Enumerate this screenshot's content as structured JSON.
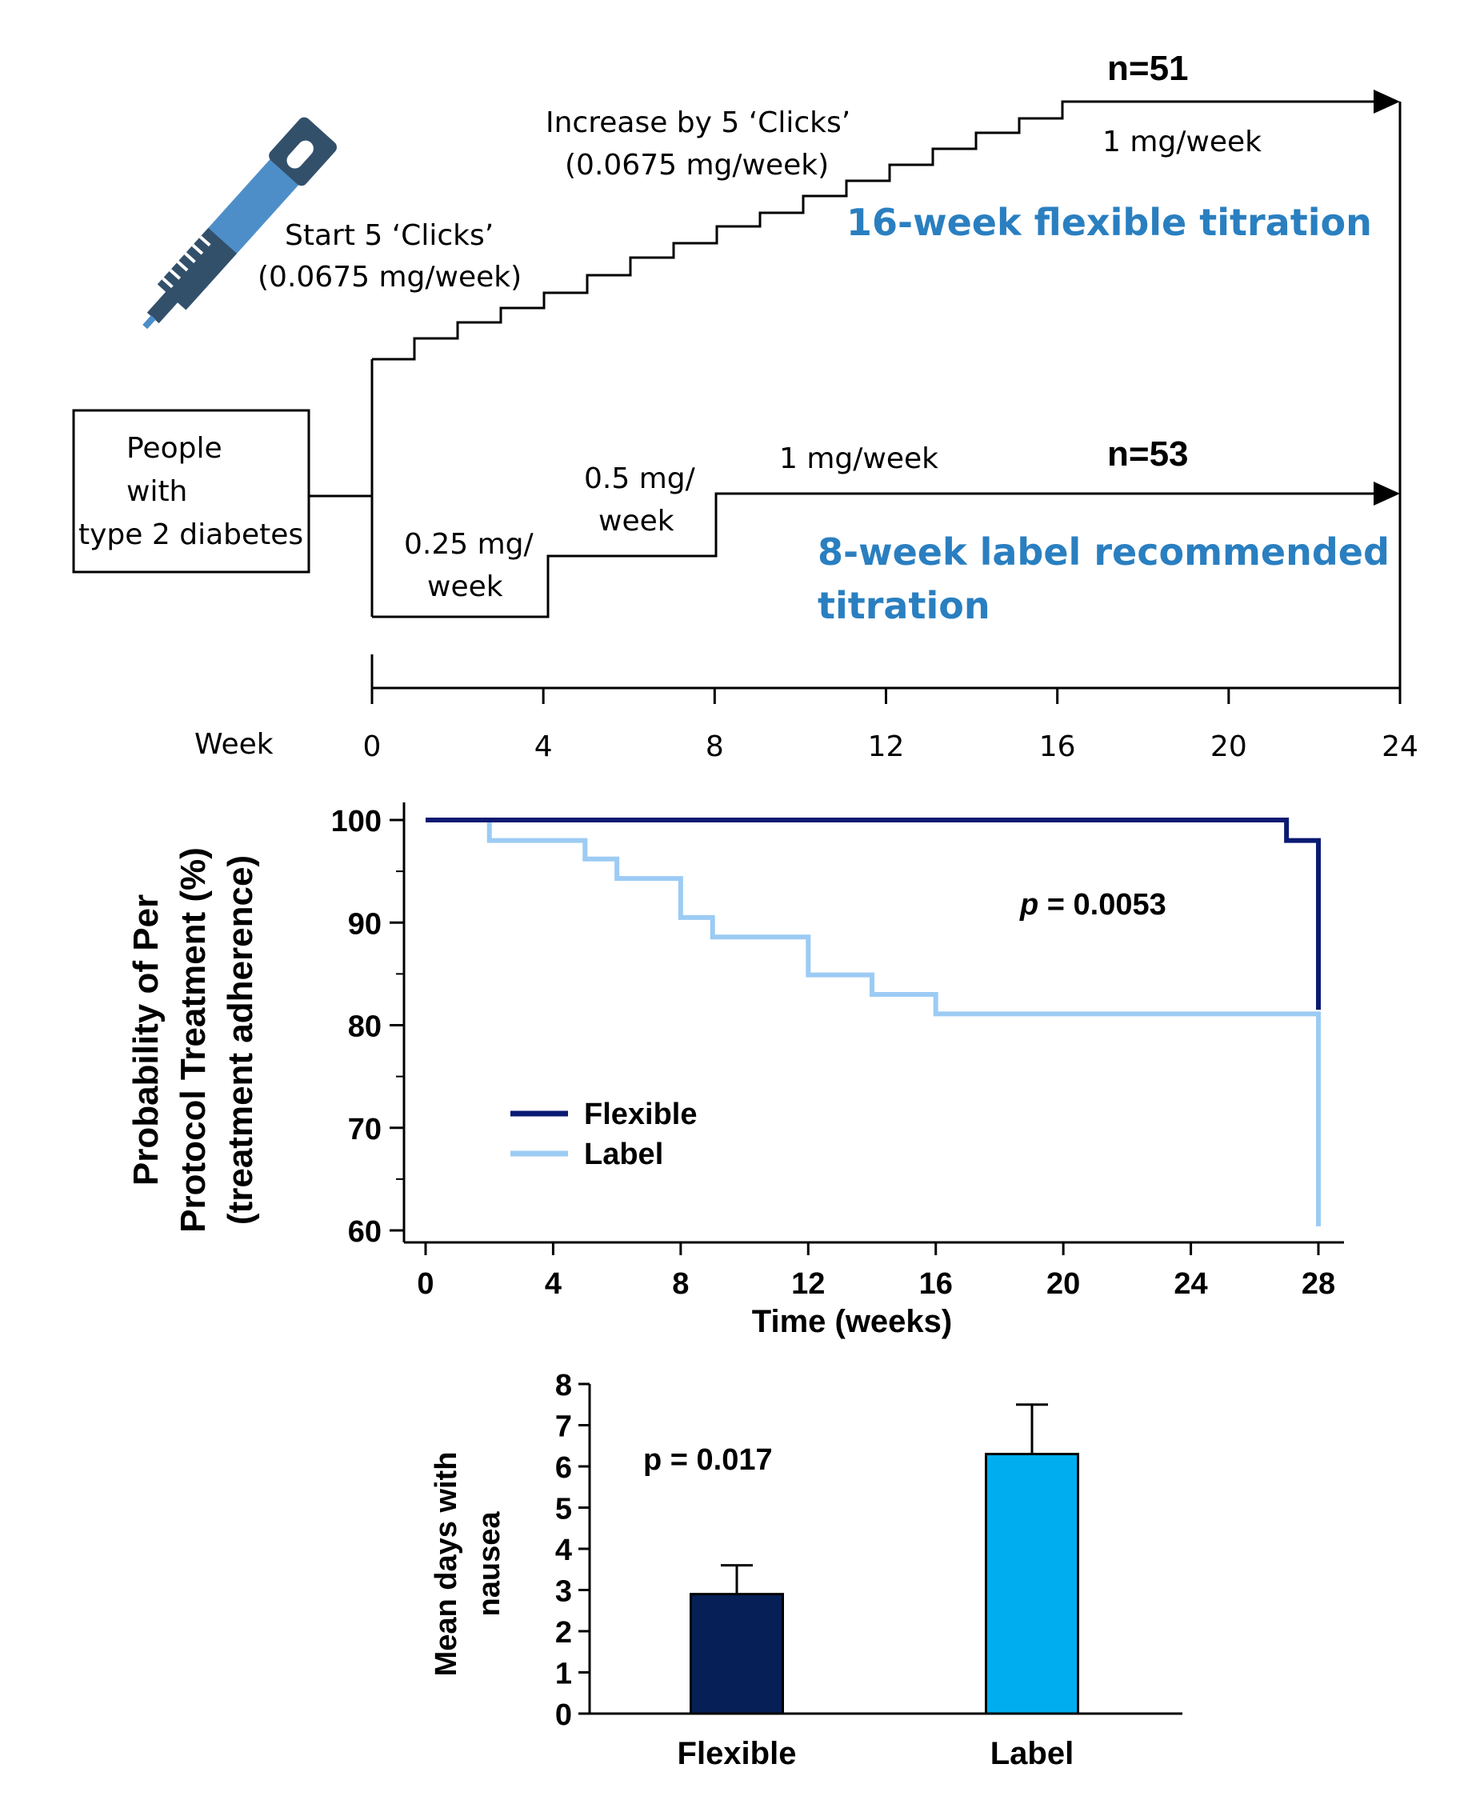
{
  "colors": {
    "flexible_dark": "#0b1a72",
    "label_light": "#9ccbf4",
    "bar_flexible": "#062057",
    "bar_label": "#00aeef",
    "title_blue": "#2a7fc0",
    "pen_blue": "#4d8ec9",
    "pen_dark": "#33506b"
  },
  "icons": {
    "pen": "insulin-pen-icon"
  },
  "diagram": {
    "population_line1": "People",
    "population_line2": "with",
    "population_line3": "type 2 diabetes",
    "start_line1": "Start 5 ‘Clicks’",
    "start_line2": "(0.0675 mg/week)",
    "increase_line1": "Increase by 5 ‘Clicks’",
    "increase_line2": "(0.0675 mg/week)",
    "flex_n": "n=51",
    "flex_final_dose": "1 mg/week",
    "flex_title": "16-week flexible titration",
    "label_n": "n=53",
    "label_dose1_line1": "0.25 mg/",
    "label_dose1_line2": "week",
    "label_dose2_line1": "0.5 mg/",
    "label_dose2_line2": "week",
    "label_dose3": "1 mg/week",
    "label_title_line1": "8-week label recommended",
    "label_title_line2": "titration",
    "week_label": "Week",
    "week_ticks": [
      "0",
      "4",
      "8",
      "12",
      "16",
      "20",
      "24"
    ]
  },
  "chart_data": [
    {
      "type": "line",
      "subtype": "kaplan-meier step",
      "title": "",
      "ylabel_line1": "Probability of Per",
      "ylabel_line2": "Protocol Treatment (%)",
      "ylabel_line3": "(treatment adherence)",
      "xlabel": "Time (weeks)",
      "xlim": [
        0,
        28
      ],
      "ylim": [
        60,
        100
      ],
      "xticks": [
        0,
        4,
        8,
        12,
        16,
        20,
        24,
        28
      ],
      "yticks": [
        60,
        70,
        80,
        90,
        100
      ],
      "annotation_italic": "p",
      "annotation_rest": " = 0.0053",
      "legend_position": "lower-left",
      "series": [
        {
          "name": "Flexible",
          "x": [
            0,
            27,
            27,
            28,
            28
          ],
          "y": [
            100,
            100,
            98,
            98,
            81.5
          ]
        },
        {
          "name": "Label",
          "x": [
            0,
            2,
            2,
            5,
            5,
            6,
            6,
            8,
            8,
            9,
            9,
            12,
            12,
            14,
            14,
            16,
            16,
            28,
            28
          ],
          "y": [
            100,
            100,
            98,
            98,
            96.2,
            96.2,
            94.3,
            94.3,
            90.5,
            90.5,
            88.6,
            88.6,
            84.9,
            84.9,
            83,
            83,
            81.1,
            81.1,
            60.4
          ]
        }
      ]
    },
    {
      "type": "bar",
      "title": "",
      "ylabel_line1": "Mean days with",
      "ylabel_line2": "nausea",
      "xlabel": "",
      "ylim": [
        0,
        8
      ],
      "yticks": [
        0,
        1,
        2,
        3,
        4,
        5,
        6,
        7,
        8
      ],
      "categories": [
        "Flexible",
        "Label"
      ],
      "values": [
        2.9,
        6.3
      ],
      "error_upper": [
        3.6,
        7.5
      ],
      "annotation": "p = 0.017"
    }
  ]
}
